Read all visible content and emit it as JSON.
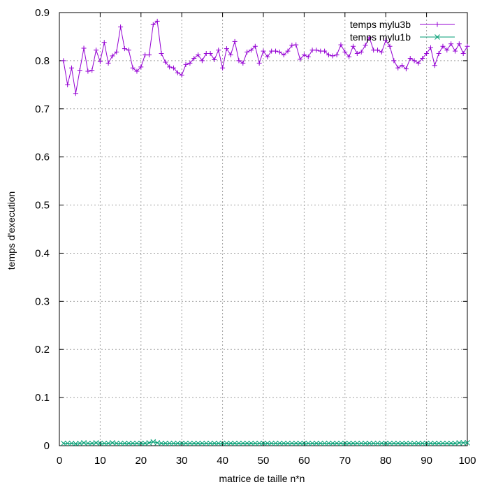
{
  "chart_data": {
    "type": "line",
    "title": "",
    "xlabel": "matrice de taille n*n",
    "ylabel": "temps d'execution",
    "xlim": [
      0,
      100
    ],
    "ylim": [
      0,
      0.9
    ],
    "xticks": [
      0,
      10,
      20,
      30,
      40,
      50,
      60,
      70,
      80,
      90,
      100
    ],
    "yticks": [
      0,
      0.1,
      0.2,
      0.3,
      0.4,
      0.5,
      0.6,
      0.7,
      0.8,
      0.9
    ],
    "xtick_labels": [
      "0",
      "10",
      "20",
      "30",
      "40",
      "50",
      "60",
      "70",
      "80",
      "90",
      "100"
    ],
    "ytick_labels": [
      "0",
      "0.1",
      "0.2",
      "0.3",
      "0.4",
      "0.5",
      "0.6",
      "0.7",
      "0.8",
      "0.9"
    ],
    "grid": true,
    "legend_position": "top-right",
    "series": [
      {
        "name": "temps mylu3b",
        "color": "#9400d3",
        "marker": "plus",
        "x": [
          1,
          2,
          3,
          4,
          5,
          6,
          7,
          8,
          9,
          10,
          11,
          12,
          13,
          14,
          15,
          16,
          17,
          18,
          19,
          20,
          21,
          22,
          23,
          24,
          25,
          26,
          27,
          28,
          29,
          30,
          31,
          32,
          33,
          34,
          35,
          36,
          37,
          38,
          39,
          40,
          41,
          42,
          43,
          44,
          45,
          46,
          47,
          48,
          49,
          50,
          51,
          52,
          53,
          54,
          55,
          56,
          57,
          58,
          59,
          60,
          61,
          62,
          63,
          64,
          65,
          66,
          67,
          68,
          69,
          70,
          71,
          72,
          73,
          74,
          75,
          76,
          77,
          78,
          79,
          80,
          81,
          82,
          83,
          84,
          85,
          86,
          87,
          88,
          89,
          90,
          91,
          92,
          93,
          94,
          95,
          96,
          97,
          98,
          99,
          100
        ],
        "values": [
          0.8,
          0.75,
          0.785,
          0.732,
          0.78,
          0.826,
          0.778,
          0.78,
          0.822,
          0.798,
          0.838,
          0.795,
          0.81,
          0.818,
          0.87,
          0.825,
          0.822,
          0.785,
          0.778,
          0.787,
          0.812,
          0.812,
          0.875,
          0.882,
          0.815,
          0.797,
          0.787,
          0.785,
          0.775,
          0.77,
          0.792,
          0.795,
          0.805,
          0.812,
          0.8,
          0.815,
          0.815,
          0.802,
          0.822,
          0.785,
          0.825,
          0.812,
          0.84,
          0.8,
          0.795,
          0.818,
          0.822,
          0.83,
          0.795,
          0.82,
          0.808,
          0.82,
          0.82,
          0.818,
          0.812,
          0.82,
          0.832,
          0.833,
          0.803,
          0.812,
          0.808,
          0.822,
          0.822,
          0.82,
          0.82,
          0.812,
          0.81,
          0.812,
          0.833,
          0.818,
          0.808,
          0.83,
          0.815,
          0.818,
          0.832,
          0.848,
          0.822,
          0.822,
          0.818,
          0.842,
          0.83,
          0.8,
          0.785,
          0.79,
          0.783,
          0.805,
          0.8,
          0.795,
          0.805,
          0.815,
          0.827,
          0.79,
          0.815,
          0.83,
          0.822,
          0.835,
          0.82,
          0.835,
          0.815,
          0.83
        ]
      },
      {
        "name": "temps mylu1b",
        "color": "#009e73",
        "marker": "cross",
        "x": [
          1,
          2,
          3,
          4,
          5,
          6,
          7,
          8,
          9,
          10,
          11,
          12,
          13,
          14,
          15,
          16,
          17,
          18,
          19,
          20,
          21,
          22,
          23,
          24,
          25,
          26,
          27,
          28,
          29,
          30,
          31,
          32,
          33,
          34,
          35,
          36,
          37,
          38,
          39,
          40,
          41,
          42,
          43,
          44,
          45,
          46,
          47,
          48,
          49,
          50,
          51,
          52,
          53,
          54,
          55,
          56,
          57,
          58,
          59,
          60,
          61,
          62,
          63,
          64,
          65,
          66,
          67,
          68,
          69,
          70,
          71,
          72,
          73,
          74,
          75,
          76,
          77,
          78,
          79,
          80,
          81,
          82,
          83,
          84,
          85,
          86,
          87,
          88,
          89,
          90,
          91,
          92,
          93,
          94,
          95,
          96,
          97,
          98,
          99,
          100
        ],
        "values": [
          0.005,
          0.005,
          0.005,
          0.004,
          0.005,
          0.006,
          0.005,
          0.005,
          0.006,
          0.005,
          0.005,
          0.005,
          0.006,
          0.005,
          0.005,
          0.005,
          0.005,
          0.005,
          0.005,
          0.005,
          0.005,
          0.006,
          0.008,
          0.006,
          0.005,
          0.005,
          0.005,
          0.005,
          0.005,
          0.005,
          0.005,
          0.005,
          0.005,
          0.005,
          0.005,
          0.005,
          0.005,
          0.005,
          0.005,
          0.005,
          0.005,
          0.005,
          0.005,
          0.005,
          0.005,
          0.005,
          0.005,
          0.005,
          0.005,
          0.005,
          0.005,
          0.005,
          0.005,
          0.005,
          0.005,
          0.005,
          0.005,
          0.005,
          0.005,
          0.005,
          0.005,
          0.005,
          0.005,
          0.005,
          0.005,
          0.005,
          0.005,
          0.005,
          0.005,
          0.005,
          0.005,
          0.005,
          0.005,
          0.005,
          0.005,
          0.005,
          0.005,
          0.005,
          0.005,
          0.005,
          0.005,
          0.005,
          0.005,
          0.005,
          0.005,
          0.005,
          0.005,
          0.005,
          0.005,
          0.005,
          0.005,
          0.005,
          0.005,
          0.005,
          0.005,
          0.005,
          0.005,
          0.006,
          0.006,
          0.006
        ]
      }
    ]
  }
}
